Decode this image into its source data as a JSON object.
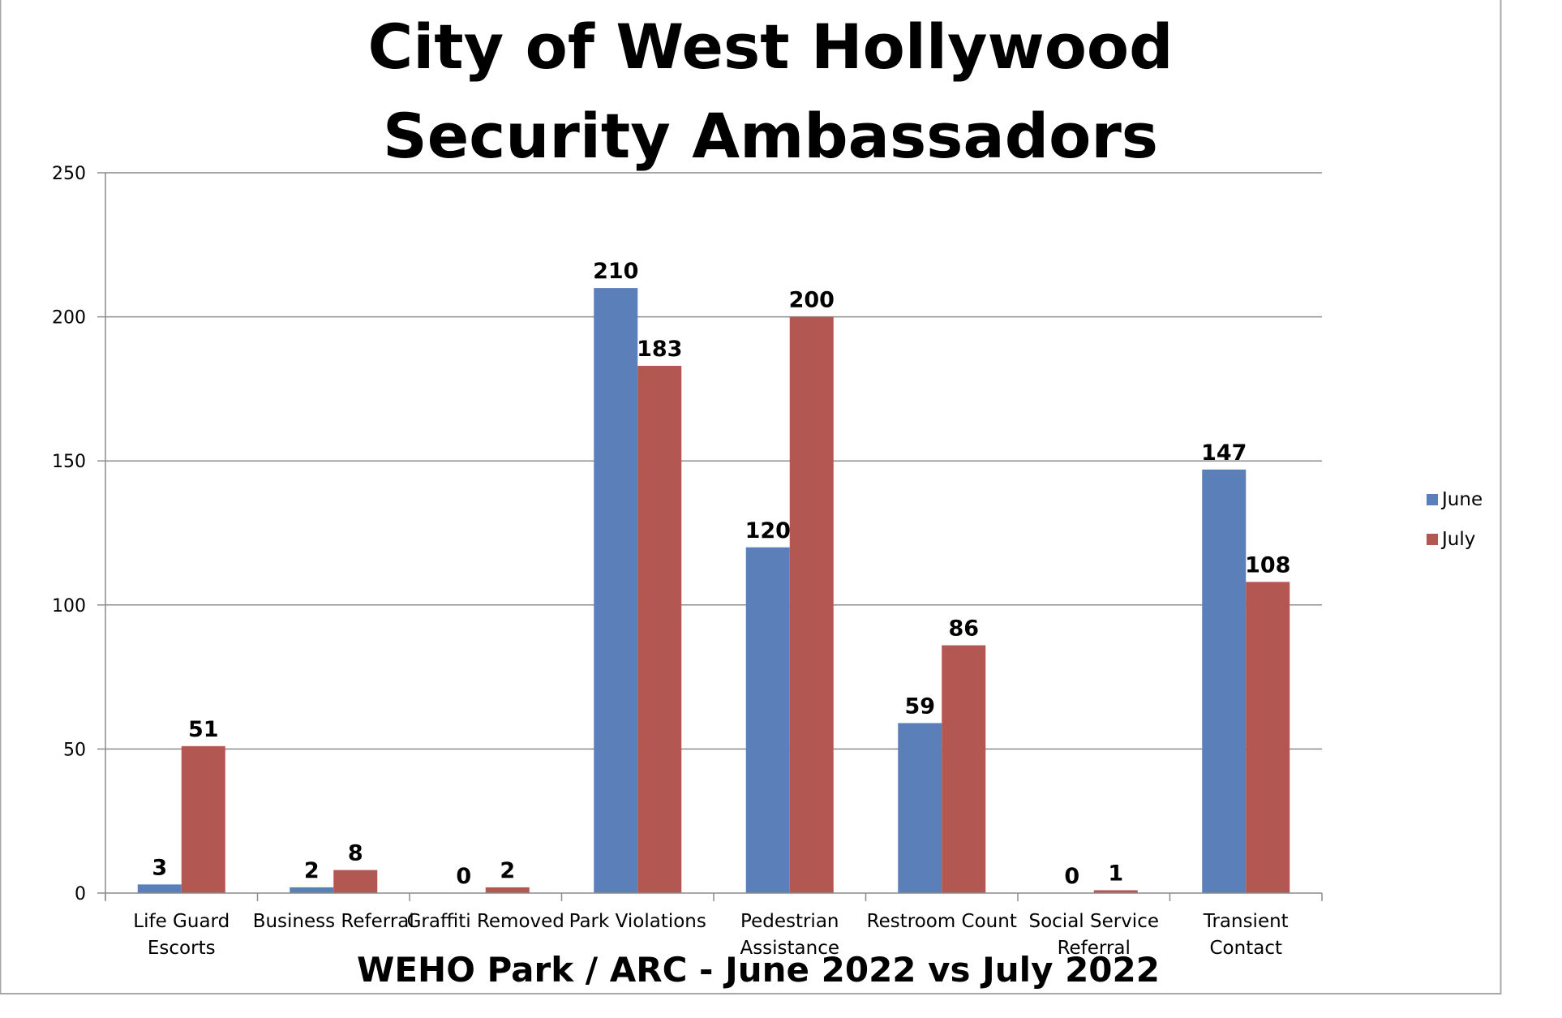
{
  "chart_data": {
    "type": "bar",
    "title_lines": [
      "City of West Hollywood",
      "Security Ambassadors"
    ],
    "xlabel": "WEHO Park / ARC - June 2022 vs July 2022",
    "ylabel": "",
    "ylim": [
      0,
      250
    ],
    "yticks": [
      0,
      50,
      100,
      150,
      200,
      250
    ],
    "grid": true,
    "legend_position": "right",
    "categories": [
      [
        "Life Guard",
        "Escorts"
      ],
      [
        "Business Referral"
      ],
      [
        "Graffiti Removed"
      ],
      [
        "Park Violations"
      ],
      [
        "Pedestrian",
        "Assistance"
      ],
      [
        "Restroom Count"
      ],
      [
        "Social Service",
        "Referral"
      ],
      [
        "Transient",
        "Contact"
      ]
    ],
    "series": [
      {
        "name": "June",
        "color": "#5b80b9",
        "values": [
          3,
          2,
          0,
          210,
          120,
          59,
          0,
          147
        ]
      },
      {
        "name": "July",
        "color": "#b35752",
        "values": [
          51,
          8,
          2,
          183,
          200,
          86,
          1,
          108
        ]
      }
    ]
  }
}
